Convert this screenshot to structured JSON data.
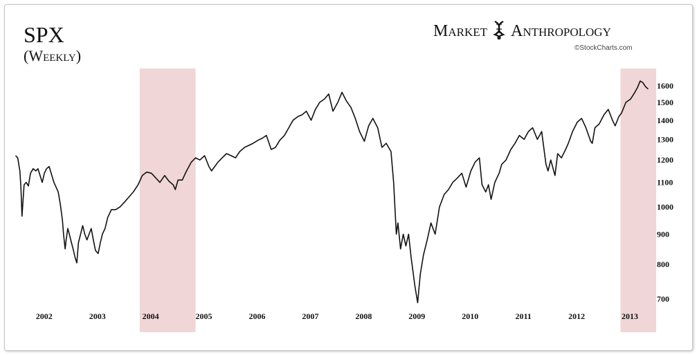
{
  "header": {
    "title": "SPX",
    "subtitle": "(Weekly)",
    "brand_left": "Market",
    "brand_right": "Anthropology",
    "credit": "©StockCharts.com"
  },
  "colors": {
    "line": "#111111",
    "highlight": "#f0d6d6"
  },
  "chart_data": {
    "type": "line",
    "title": "SPX",
    "subtitle": "(Weekly)",
    "xlabel": "",
    "ylabel": "",
    "y_scale": "log",
    "ylim": [
      650,
      1680
    ],
    "xlim": [
      2001.6,
      2013.65
    ],
    "grid": false,
    "legend": "none",
    "x_ticks": [
      {
        "x": 2002,
        "label": "2002"
      },
      {
        "x": 2003,
        "label": "2003"
      },
      {
        "x": 2004,
        "label": "2004"
      },
      {
        "x": 2005,
        "label": "2005"
      },
      {
        "x": 2006,
        "label": "2006"
      },
      {
        "x": 2007,
        "label": "2007"
      },
      {
        "x": 2008,
        "label": "2008"
      },
      {
        "x": 2009,
        "label": "2009"
      },
      {
        "x": 2010,
        "label": "2010"
      },
      {
        "x": 2011,
        "label": "2011"
      },
      {
        "x": 2012,
        "label": "2012"
      },
      {
        "x": 2013,
        "label": "2013"
      }
    ],
    "y_ticks": [
      {
        "y": 700,
        "label": "700"
      },
      {
        "y": 800,
        "label": "800"
      },
      {
        "y": 900,
        "label": "900"
      },
      {
        "y": 1000,
        "label": "1000"
      },
      {
        "y": 1100,
        "label": "1100"
      },
      {
        "y": 1200,
        "label": "1200"
      },
      {
        "y": 1300,
        "label": "1300"
      },
      {
        "y": 1400,
        "label": "1400"
      },
      {
        "y": 1500,
        "label": "1500"
      },
      {
        "y": 1600,
        "label": "1600"
      }
    ],
    "highlight_ranges": [
      {
        "x0": 2003.95,
        "x1": 2005.0
      },
      {
        "x0": 2012.98,
        "x1": 2013.65
      }
    ],
    "series": [
      {
        "points": [
          [
            2001.62,
            1220
          ],
          [
            2001.66,
            1210
          ],
          [
            2001.7,
            1150
          ],
          [
            2001.72,
            1080
          ],
          [
            2001.74,
            965
          ],
          [
            2001.78,
            1090
          ],
          [
            2001.82,
            1100
          ],
          [
            2001.86,
            1085
          ],
          [
            2001.9,
            1140
          ],
          [
            2001.95,
            1160
          ],
          [
            2002.0,
            1150
          ],
          [
            2002.04,
            1160
          ],
          [
            2002.08,
            1130
          ],
          [
            2002.12,
            1100
          ],
          [
            2002.16,
            1140
          ],
          [
            2002.2,
            1160
          ],
          [
            2002.25,
            1170
          ],
          [
            2002.3,
            1130
          ],
          [
            2002.34,
            1100
          ],
          [
            2002.38,
            1080
          ],
          [
            2002.42,
            1060
          ],
          [
            2002.46,
            1010
          ],
          [
            2002.5,
            950
          ],
          [
            2002.52,
            900
          ],
          [
            2002.55,
            850
          ],
          [
            2002.57,
            880
          ],
          [
            2002.6,
            920
          ],
          [
            2002.63,
            900
          ],
          [
            2002.67,
            870
          ],
          [
            2002.7,
            850
          ],
          [
            2002.74,
            820
          ],
          [
            2002.77,
            805
          ],
          [
            2002.8,
            870
          ],
          [
            2002.84,
            900
          ],
          [
            2002.88,
            930
          ],
          [
            2002.92,
            900
          ],
          [
            2002.96,
            880
          ],
          [
            2003.0,
            900
          ],
          [
            2003.04,
            920
          ],
          [
            2003.08,
            880
          ],
          [
            2003.12,
            845
          ],
          [
            2003.17,
            835
          ],
          [
            2003.21,
            870
          ],
          [
            2003.25,
            900
          ],
          [
            2003.3,
            920
          ],
          [
            2003.35,
            960
          ],
          [
            2003.42,
            990
          ],
          [
            2003.5,
            990
          ],
          [
            2003.58,
            1000
          ],
          [
            2003.67,
            1020
          ],
          [
            2003.75,
            1040
          ],
          [
            2003.83,
            1060
          ],
          [
            2003.92,
            1090
          ],
          [
            2004.0,
            1130
          ],
          [
            2004.08,
            1145
          ],
          [
            2004.17,
            1140
          ],
          [
            2004.25,
            1120
          ],
          [
            2004.33,
            1100
          ],
          [
            2004.42,
            1130
          ],
          [
            2004.5,
            1105
          ],
          [
            2004.58,
            1090
          ],
          [
            2004.62,
            1070
          ],
          [
            2004.67,
            1110
          ],
          [
            2004.75,
            1110
          ],
          [
            2004.83,
            1150
          ],
          [
            2004.92,
            1190
          ],
          [
            2005.0,
            1210
          ],
          [
            2005.08,
            1200
          ],
          [
            2005.17,
            1220
          ],
          [
            2005.25,
            1170
          ],
          [
            2005.3,
            1150
          ],
          [
            2005.42,
            1190
          ],
          [
            2005.5,
            1210
          ],
          [
            2005.58,
            1230
          ],
          [
            2005.67,
            1220
          ],
          [
            2005.75,
            1210
          ],
          [
            2005.83,
            1240
          ],
          [
            2005.92,
            1260
          ],
          [
            2006.0,
            1270
          ],
          [
            2006.08,
            1280
          ],
          [
            2006.17,
            1295
          ],
          [
            2006.25,
            1305
          ],
          [
            2006.33,
            1320
          ],
          [
            2006.42,
            1250
          ],
          [
            2006.5,
            1260
          ],
          [
            2006.58,
            1295
          ],
          [
            2006.67,
            1320
          ],
          [
            2006.75,
            1360
          ],
          [
            2006.83,
            1400
          ],
          [
            2006.92,
            1420
          ],
          [
            2007.0,
            1430
          ],
          [
            2007.08,
            1450
          ],
          [
            2007.17,
            1400
          ],
          [
            2007.25,
            1460
          ],
          [
            2007.33,
            1500
          ],
          [
            2007.42,
            1520
          ],
          [
            2007.5,
            1550
          ],
          [
            2007.58,
            1450
          ],
          [
            2007.67,
            1500
          ],
          [
            2007.75,
            1560
          ],
          [
            2007.83,
            1510
          ],
          [
            2007.92,
            1470
          ],
          [
            2008.0,
            1410
          ],
          [
            2008.08,
            1340
          ],
          [
            2008.17,
            1290
          ],
          [
            2008.25,
            1370
          ],
          [
            2008.33,
            1410
          ],
          [
            2008.42,
            1360
          ],
          [
            2008.5,
            1260
          ],
          [
            2008.58,
            1280
          ],
          [
            2008.67,
            1240
          ],
          [
            2008.72,
            1100
          ],
          [
            2008.77,
            900
          ],
          [
            2008.8,
            940
          ],
          [
            2008.85,
            850
          ],
          [
            2008.9,
            900
          ],
          [
            2008.95,
            860
          ],
          [
            2009.0,
            900
          ],
          [
            2009.05,
            820
          ],
          [
            2009.12,
            735
          ],
          [
            2009.17,
            690
          ],
          [
            2009.22,
            770
          ],
          [
            2009.28,
            830
          ],
          [
            2009.35,
            880
          ],
          [
            2009.42,
            940
          ],
          [
            2009.5,
            900
          ],
          [
            2009.58,
            1000
          ],
          [
            2009.67,
            1050
          ],
          [
            2009.75,
            1070
          ],
          [
            2009.83,
            1100
          ],
          [
            2009.92,
            1120
          ],
          [
            2010.0,
            1140
          ],
          [
            2010.08,
            1080
          ],
          [
            2010.17,
            1150
          ],
          [
            2010.25,
            1190
          ],
          [
            2010.33,
            1210
          ],
          [
            2010.38,
            1090
          ],
          [
            2010.45,
            1060
          ],
          [
            2010.5,
            1090
          ],
          [
            2010.55,
            1030
          ],
          [
            2010.62,
            1100
          ],
          [
            2010.7,
            1140
          ],
          [
            2010.75,
            1180
          ],
          [
            2010.83,
            1200
          ],
          [
            2010.92,
            1250
          ],
          [
            2011.0,
            1280
          ],
          [
            2011.08,
            1320
          ],
          [
            2011.17,
            1300
          ],
          [
            2011.25,
            1340
          ],
          [
            2011.33,
            1360
          ],
          [
            2011.42,
            1300
          ],
          [
            2011.5,
            1340
          ],
          [
            2011.58,
            1180
          ],
          [
            2011.62,
            1150
          ],
          [
            2011.67,
            1200
          ],
          [
            2011.75,
            1130
          ],
          [
            2011.8,
            1230
          ],
          [
            2011.87,
            1210
          ],
          [
            2011.95,
            1250
          ],
          [
            2012.0,
            1280
          ],
          [
            2012.08,
            1340
          ],
          [
            2012.17,
            1390
          ],
          [
            2012.25,
            1410
          ],
          [
            2012.33,
            1360
          ],
          [
            2012.42,
            1290
          ],
          [
            2012.45,
            1280
          ],
          [
            2012.5,
            1360
          ],
          [
            2012.58,
            1380
          ],
          [
            2012.67,
            1430
          ],
          [
            2012.75,
            1460
          ],
          [
            2012.83,
            1400
          ],
          [
            2012.88,
            1370
          ],
          [
            2012.95,
            1420
          ],
          [
            2013.0,
            1440
          ],
          [
            2013.08,
            1500
          ],
          [
            2013.17,
            1520
          ],
          [
            2013.25,
            1560
          ],
          [
            2013.3,
            1590
          ],
          [
            2013.35,
            1630
          ],
          [
            2013.4,
            1620
          ],
          [
            2013.45,
            1595
          ],
          [
            2013.5,
            1580
          ]
        ]
      }
    ]
  }
}
